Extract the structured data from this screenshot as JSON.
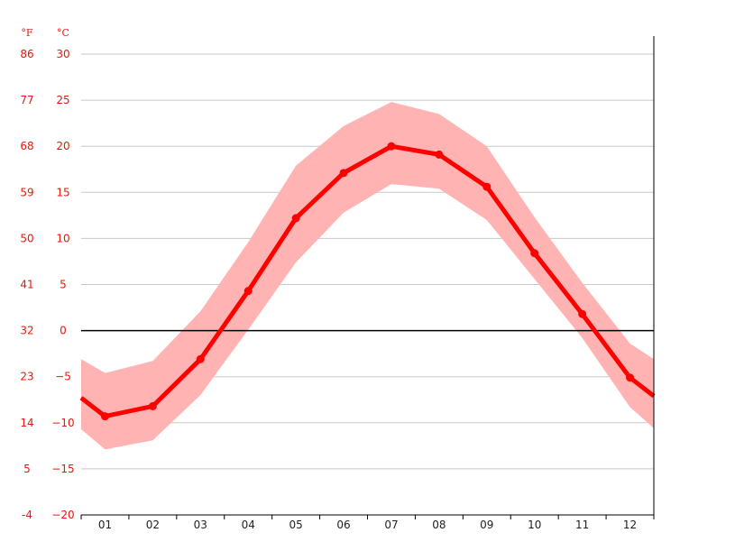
{
  "chart_data": {
    "type": "line",
    "unit_labels": {
      "fahrenheit": "°F",
      "celsius": "°C"
    },
    "y_ticks_c": [
      "30",
      "25",
      "20",
      "15",
      "10",
      "5",
      "0",
      "−5",
      "−10",
      "−15",
      "−20"
    ],
    "y_ticks_f": [
      "86",
      "77",
      "68",
      "59",
      "50",
      "41",
      "32",
      "23",
      "14",
      "5",
      "-4"
    ],
    "ylim": [
      -20,
      30
    ],
    "categories": [
      "01",
      "02",
      "03",
      "04",
      "05",
      "06",
      "07",
      "08",
      "09",
      "10",
      "11",
      "12"
    ],
    "series": [
      {
        "values": [
          -9.3,
          -8.2,
          -3.1,
          4.3,
          12.2,
          17.1,
          20.0,
          19.1,
          15.6,
          8.4,
          1.8,
          -5.1
        ]
      }
    ],
    "range_low": [
      -12.9,
      -11.9,
      -7.0,
      0.1,
      7.4,
      12.8,
      15.9,
      15.4,
      12.0,
      5.6,
      -0.8,
      -8.3
    ],
    "range_high": [
      -4.6,
      -3.3,
      2.1,
      9.6,
      17.9,
      22.2,
      24.8,
      23.5,
      20.0,
      12.3,
      5.2,
      -1.4
    ],
    "edge_values": {
      "left": {
        "avg": -7.3,
        "low": -10.7,
        "high": -3.1
      },
      "right": {
        "avg": -7.1,
        "low": -10.6,
        "high": -3.1
      }
    },
    "zero_line": true,
    "grid": true,
    "colors": {
      "line": "#ff0000",
      "band": "#ffb3b3",
      "grid": "#c8c8c8",
      "axis": "#000000",
      "tick_text": "#e8170b"
    }
  }
}
